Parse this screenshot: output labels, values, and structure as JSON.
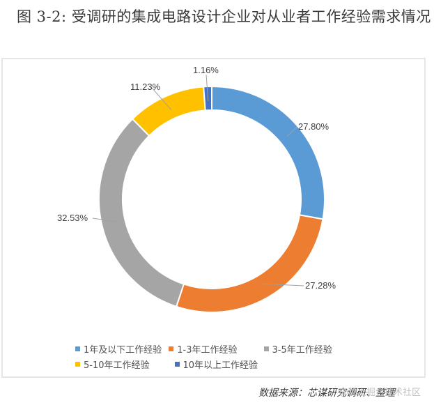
{
  "title": "图 3-2: 受调研的集成电路设计企业对从业者工作经验需求情况",
  "source": "数据来源：芯谋研究调研、整理",
  "watermark": "@稀土掘金技术社区",
  "colors": {
    "exp_le1": "#5B9BD5",
    "exp_1_3": "#ED7D31",
    "exp_3_5": "#A5A5A5",
    "exp_5_10": "#FFC000",
    "exp_gt10": "#4472C4"
  },
  "labels": {
    "exp_le1": "27.80%",
    "exp_1_3": "27.28%",
    "exp_3_5": "32.53%",
    "exp_5_10": "11.23%",
    "exp_gt10": "1.16%"
  },
  "legend": [
    {
      "key": "exp_le1",
      "label": "1年及以下工作经验"
    },
    {
      "key": "exp_1_3",
      "label": "1-3年工作经验"
    },
    {
      "key": "exp_3_5",
      "label": "3-5年工作经验"
    },
    {
      "key": "exp_5_10",
      "label": "5-10年工作经验"
    },
    {
      "key": "exp_gt10",
      "label": "10年以上工作经验"
    }
  ],
  "chart_data": {
    "type": "pie",
    "subtype": "donut",
    "title": "图 3-2: 受调研的集成电路设计企业对从业者工作经验需求情况",
    "categories": [
      "1年及以下工作经验",
      "1-3年工作经验",
      "3-5年工作经验",
      "5-10年工作经验",
      "10年以上工作经验"
    ],
    "values": [
      27.8,
      27.28,
      32.53,
      11.23,
      1.16
    ],
    "unit": "%",
    "colors": [
      "#5B9BD5",
      "#ED7D31",
      "#A5A5A5",
      "#FFC000",
      "#4472C4"
    ],
    "start_angle": "12 o'clock, clockwise",
    "legend_position": "bottom",
    "data_labels": [
      "27.80%",
      "27.28%",
      "32.53%",
      "11.23%",
      "1.16%"
    ],
    "source": "数据来源：芯谋研究调研、整理"
  }
}
